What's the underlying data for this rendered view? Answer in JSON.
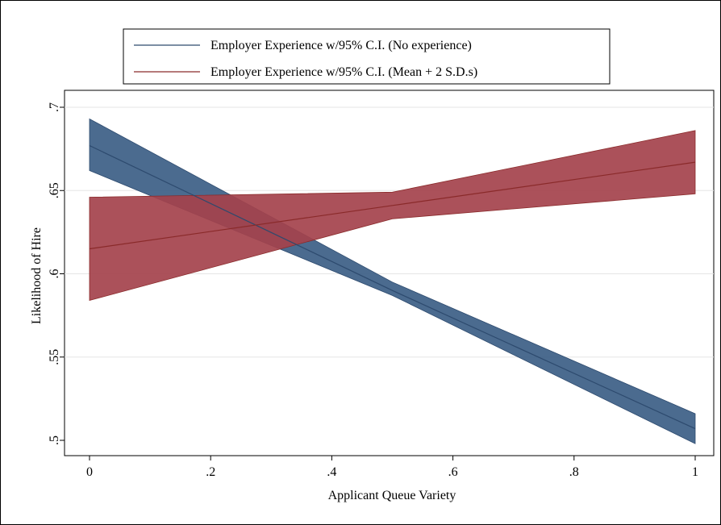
{
  "chart_data": {
    "type": "line",
    "title": "",
    "xlabel": "Applicant Queue Variety",
    "ylabel": "Likelihood of Hire",
    "xlim": [
      0,
      1
    ],
    "ylim": [
      0.5,
      0.7
    ],
    "x_ticks": [
      "0",
      ".2",
      ".4",
      ".6",
      ".8",
      "1"
    ],
    "x_tick_values": [
      0,
      0.2,
      0.4,
      0.6,
      0.8,
      1
    ],
    "y_ticks": [
      ".5",
      ".55",
      ".6",
      ".65",
      ".7"
    ],
    "y_tick_values": [
      0.5,
      0.55,
      0.6,
      0.65,
      0.7
    ],
    "grid": "horizontal",
    "legend_position": "top",
    "series": [
      {
        "name": "Employer Experience w/95% C.I. (No experience)",
        "line_color": "#2d4a6e",
        "fill_color": "#3c5e86",
        "x": [
          0,
          0.5,
          1
        ],
        "y": [
          0.677,
          0.59,
          0.507
        ],
        "lower": [
          0.662,
          0.587,
          0.498
        ],
        "upper": [
          0.693,
          0.595,
          0.516
        ]
      },
      {
        "name": "Employer Experience w/95% C.I. (Mean + 2 S.D.s)",
        "line_color": "#8a2a2a",
        "fill_color": "#a4424c",
        "x": [
          0,
          0.5,
          1
        ],
        "y": [
          0.615,
          0.641,
          0.667
        ],
        "lower": [
          0.584,
          0.633,
          0.648
        ],
        "upper": [
          0.646,
          0.649,
          0.686
        ]
      }
    ]
  }
}
